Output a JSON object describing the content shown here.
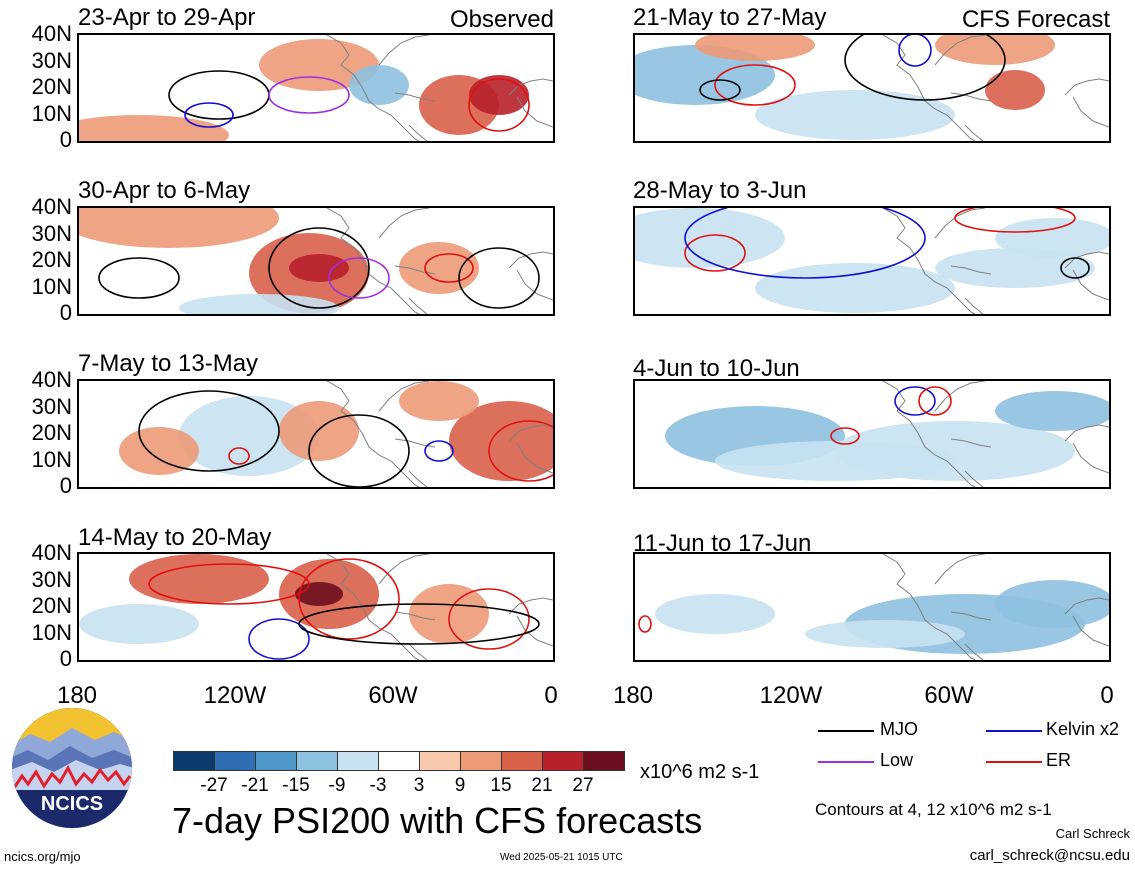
{
  "header": {
    "left_tag": "Observed",
    "right_tag": "CFS Forecast"
  },
  "panels": {
    "p0": {
      "title": "23-Apr to 29-Apr"
    },
    "p1": {
      "title": "30-Apr to 6-May"
    },
    "p2": {
      "title": "7-May to 13-May"
    },
    "p3": {
      "title": "14-May to 20-May"
    },
    "p4": {
      "title": "21-May to 27-May"
    },
    "p5": {
      "title": "28-May to 3-Jun"
    },
    "p6": {
      "title": "4-Jun to 10-Jun"
    },
    "p7": {
      "title": "11-Jun to 17-Jun"
    }
  },
  "axes": {
    "y_ticks": [
      "40N",
      "30N",
      "20N",
      "10N",
      "0"
    ],
    "x_ticks": [
      "180",
      "120W",
      "60W",
      "0"
    ]
  },
  "colorbar": {
    "labels": [
      "-27",
      "-21",
      "-15",
      "-9",
      "-3",
      "3",
      "9",
      "15",
      "21",
      "27"
    ],
    "colors": [
      "#0c3a6b",
      "#2e6fb3",
      "#4f96c9",
      "#8ec1e0",
      "#c8e2f1",
      "#ffffff",
      "#f9c9ad",
      "#ec9a78",
      "#d8614a",
      "#b8202a",
      "#6b0e1e"
    ],
    "units": "x10^6 m2 s-1"
  },
  "legend": {
    "mjo": "MJO",
    "kelvin": "Kelvin x2",
    "low": "Low",
    "er": "ER",
    "colors": {
      "mjo": "#000000",
      "kelvin": "#1010d0",
      "low": "#9a30e0",
      "er": "#e01010"
    }
  },
  "footer": {
    "title": "7-day PSI200 with CFS forecasts",
    "contours": "Contours at 4, 12 x10^6 m2 s-1",
    "author": "Carl Schreck",
    "email": "carl_schreck@ncsu.edu",
    "url": "ncics.org/mjo",
    "timestamp": "Wed 2025-05-21 1015 UTC",
    "logo_text": "NCICS"
  }
}
